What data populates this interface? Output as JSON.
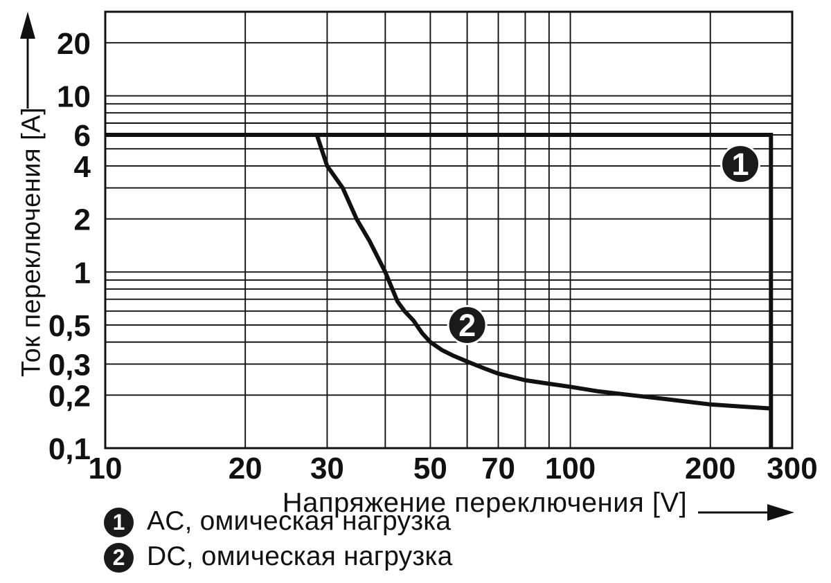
{
  "chart_data": {
    "type": "line",
    "title": "",
    "xlabel": "Напряжение переключения [V]",
    "ylabel": "Ток переключения [A]",
    "x_scale": "log",
    "y_scale": "log",
    "xlim": [
      10,
      300
    ],
    "ylim": [
      0.1,
      30
    ],
    "grid": true,
    "legend_position": "bottom",
    "x_gridlines": [
      10,
      20,
      30,
      40,
      50,
      60,
      70,
      80,
      90,
      100,
      200,
      300
    ],
    "y_gridlines": [
      0.1,
      0.2,
      0.3,
      0.4,
      0.5,
      0.6,
      0.7,
      0.8,
      0.9,
      1,
      2,
      3,
      4,
      5,
      6,
      7,
      8,
      9,
      10,
      20,
      30
    ],
    "x_ticks": [
      {
        "value": 10,
        "label": "10"
      },
      {
        "value": 20,
        "label": "20"
      },
      {
        "value": 30,
        "label": "30"
      },
      {
        "value": 50,
        "label": "50"
      },
      {
        "value": 70,
        "label": "70"
      },
      {
        "value": 100,
        "label": "100"
      },
      {
        "value": 200,
        "label": "200"
      },
      {
        "value": 300,
        "label": "300"
      }
    ],
    "y_ticks": [
      {
        "value": 20,
        "label": "20"
      },
      {
        "value": 10,
        "label": "10"
      },
      {
        "value": 6,
        "label": "6"
      },
      {
        "value": 4,
        "label": "4"
      },
      {
        "value": 2,
        "label": "2"
      },
      {
        "value": 1,
        "label": "1"
      },
      {
        "value": 0.5,
        "label": "0,5"
      },
      {
        "value": 0.3,
        "label": "0,3"
      },
      {
        "value": 0.2,
        "label": "0,2"
      },
      {
        "value": 0.1,
        "label": "0,1"
      }
    ],
    "series": [
      {
        "id": "ac",
        "name": "AC, омическая нагрузка",
        "marker_label": "1",
        "points": [
          [
            10,
            6
          ],
          [
            270,
            6
          ],
          [
            270,
            0.1
          ]
        ]
      },
      {
        "id": "dc",
        "name": "DC, омическая нагрузка",
        "marker_label": "2",
        "points": [
          [
            28.5,
            6
          ],
          [
            30,
            4
          ],
          [
            32.4,
            3
          ],
          [
            34.7,
            2
          ],
          [
            37,
            1.5
          ],
          [
            40,
            1
          ],
          [
            42.5,
            0.68
          ],
          [
            44,
            0.6
          ],
          [
            46,
            0.53
          ],
          [
            48,
            0.45
          ],
          [
            50,
            0.4
          ],
          [
            53,
            0.36
          ],
          [
            56,
            0.335
          ],
          [
            60,
            0.31
          ],
          [
            65,
            0.285
          ],
          [
            70,
            0.265
          ],
          [
            80,
            0.243
          ],
          [
            90,
            0.232
          ],
          [
            100,
            0.223
          ],
          [
            115,
            0.21
          ],
          [
            135,
            0.2
          ],
          [
            160,
            0.19
          ],
          [
            200,
            0.177
          ],
          [
            235,
            0.172
          ],
          [
            270,
            0.168
          ]
        ]
      }
    ],
    "curve_markers": [
      {
        "label": "1",
        "x": 232,
        "y": 4.1
      },
      {
        "label": "2",
        "x": 60,
        "y": 0.5
      }
    ]
  },
  "legend": {
    "items": [
      {
        "num": "1",
        "label": "AC, омическая нагрузка"
      },
      {
        "num": "2",
        "label": "DC, омическая нагрузка"
      }
    ]
  },
  "colors": {
    "ink": "#111111",
    "background": "#ffffff",
    "marker_fill": "#1a1a1a",
    "marker_text": "#ffffff"
  }
}
